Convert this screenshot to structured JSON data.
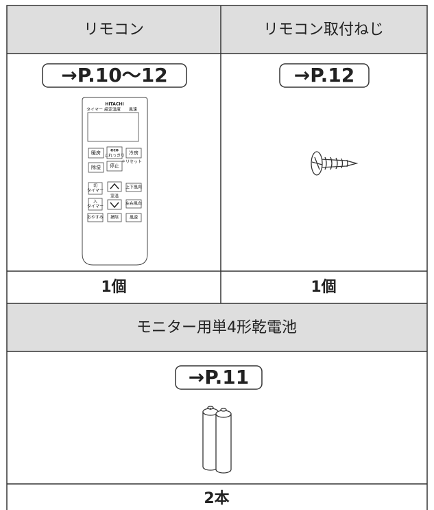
{
  "table": {
    "rows": [
      [
        "リモコン",
        "リモコン取付ねじ"
      ],
      [
        "→P.10〜12",
        "→P.12"
      ],
      [
        "1個",
        "1個"
      ],
      [
        "モニター用単4形乾電池"
      ],
      [
        "→P.11"
      ],
      [
        "2本"
      ]
    ]
  },
  "remote": {
    "brand": "HITACHI",
    "screen_labels": [
      "タイマー",
      "設定温度",
      "風速"
    ],
    "buttons": [
      "暖房",
      "eco",
      "これっきり",
      "冷房",
      "除湿",
      "停止",
      "＊リセット",
      "切",
      "タイマー",
      "入",
      "タイマー",
      "室温",
      "上下風向",
      "左右風向",
      "おやすみ",
      "掃除",
      "風速"
    ]
  }
}
